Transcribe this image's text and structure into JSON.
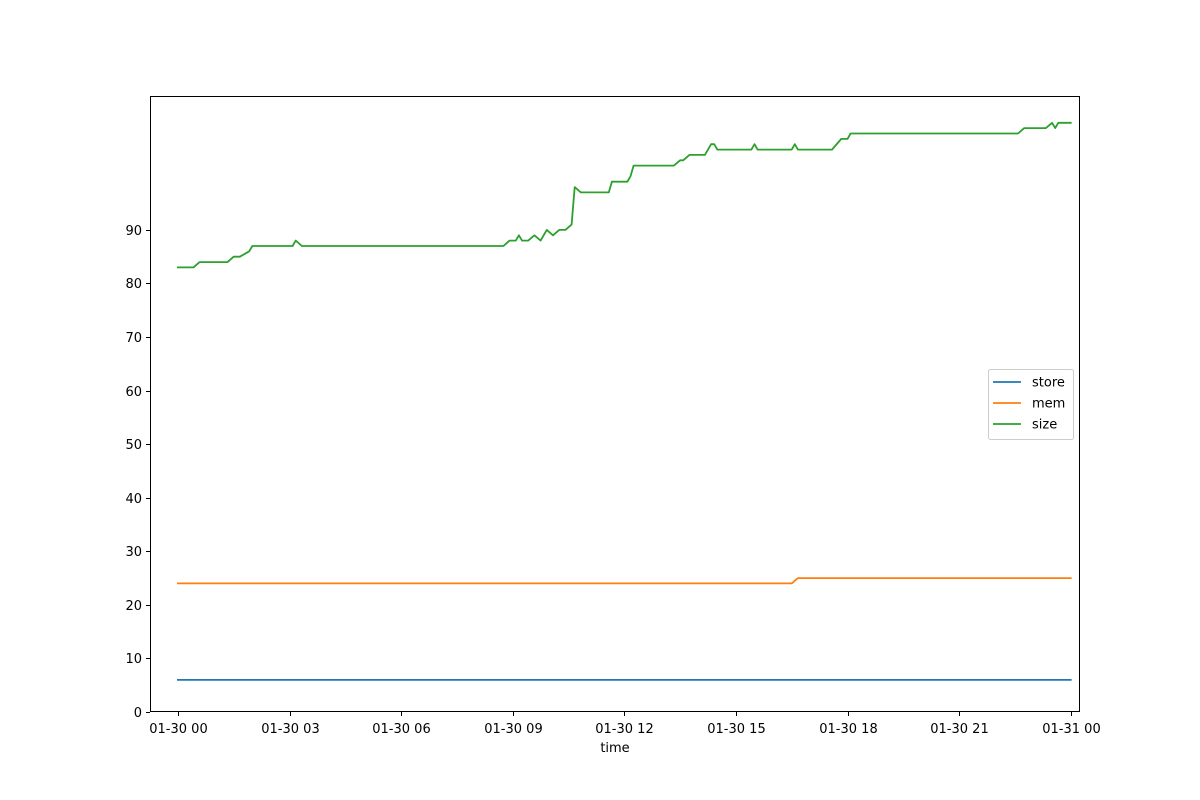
{
  "chart_data": {
    "type": "line",
    "xlabel": "time",
    "ylabel": "",
    "xlim": [
      "01-29 23:15",
      "01-31 00:15"
    ],
    "ylim": [
      0,
      115
    ],
    "yticks": [
      0,
      10,
      20,
      30,
      40,
      50,
      60,
      70,
      80,
      90
    ],
    "xticks": [
      "01-30 00:00",
      "01-30 03:00",
      "01-30 06:00",
      "01-30 09:00",
      "01-30 12:00",
      "01-30 15:00",
      "01-30 18:00",
      "01-30 21:00",
      "01-31 00:00"
    ],
    "xtick_labels": [
      "01-30 00",
      "01-30 03",
      "01-30 06",
      "01-30 09",
      "01-30 12",
      "01-30 15",
      "01-30 18",
      "01-30 21",
      "01-31 00"
    ],
    "legend": {
      "position": "center-right"
    },
    "grid": false,
    "series": [
      {
        "name": "store",
        "color": "#1f77b4",
        "x": [
          "01-30 00:00",
          "01-31 00:00"
        ],
        "y": [
          6,
          6
        ]
      },
      {
        "name": "mem",
        "color": "#ff7f0e",
        "x": [
          "01-30 00:00",
          "01-30 16:30",
          "01-30 16:40",
          "01-31 00:00"
        ],
        "y": [
          24,
          24,
          25,
          25
        ]
      },
      {
        "name": "size",
        "color": "#2ca02c",
        "x": [
          "01-30 00:00",
          "01-30 00:25",
          "01-30 00:35",
          "01-30 01:20",
          "01-30 01:30",
          "01-30 01:40",
          "01-30 01:55",
          "01-30 02:00",
          "01-30 03:05",
          "01-30 03:10",
          "01-30 03:20",
          "01-30 08:45",
          "01-30 08:55",
          "01-30 09:05",
          "01-30 09:10",
          "01-30 09:15",
          "01-30 09:25",
          "01-30 09:35",
          "01-30 09:45",
          "01-30 09:55",
          "01-30 10:05",
          "01-30 10:15",
          "01-30 10:25",
          "01-30 10:35",
          "01-30 10:40",
          "01-30 10:50",
          "01-30 11:00",
          "01-30 11:35",
          "01-30 11:40",
          "01-30 12:05",
          "01-30 12:10",
          "01-30 12:15",
          "01-30 13:20",
          "01-30 13:30",
          "01-30 13:35",
          "01-30 13:45",
          "01-30 14:10",
          "01-30 14:20",
          "01-30 14:25",
          "01-30 14:30",
          "01-30 14:35",
          "01-30 15:25",
          "01-30 15:30",
          "01-30 15:35",
          "01-30 16:30",
          "01-30 16:35",
          "01-30 16:40",
          "01-30 17:35",
          "01-30 17:50",
          "01-30 18:00",
          "01-30 18:05",
          "01-30 22:35",
          "01-30 22:45",
          "01-30 23:20",
          "01-30 23:30",
          "01-30 23:35",
          "01-30 23:40",
          "01-30 23:45",
          "01-31 00:00"
        ],
        "y": [
          83,
          83,
          84,
          84,
          85,
          85,
          86,
          87,
          87,
          88,
          87,
          87,
          88,
          88,
          89,
          88,
          88,
          89,
          88,
          90,
          89,
          90,
          90,
          91,
          98,
          97,
          97,
          97,
          99,
          99,
          100,
          102,
          102,
          103,
          103,
          104,
          104,
          106,
          106,
          105,
          105,
          105,
          106,
          105,
          105,
          106,
          105,
          105,
          107,
          107,
          108,
          108,
          109,
          109,
          110,
          109,
          110,
          110,
          110
        ]
      }
    ]
  }
}
